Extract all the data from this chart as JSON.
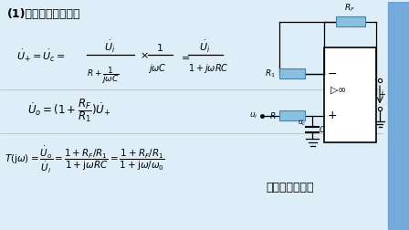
{
  "bg_color": "#ddeef8",
  "title": "(1)有源低通滤波器。",
  "circuit_label": "有源低通滤波器",
  "text_color": "#000000",
  "stripe_color": "#5b9bd5",
  "resistor_color": "#8bbfe0",
  "resistor_edge": "#4a7fa8"
}
